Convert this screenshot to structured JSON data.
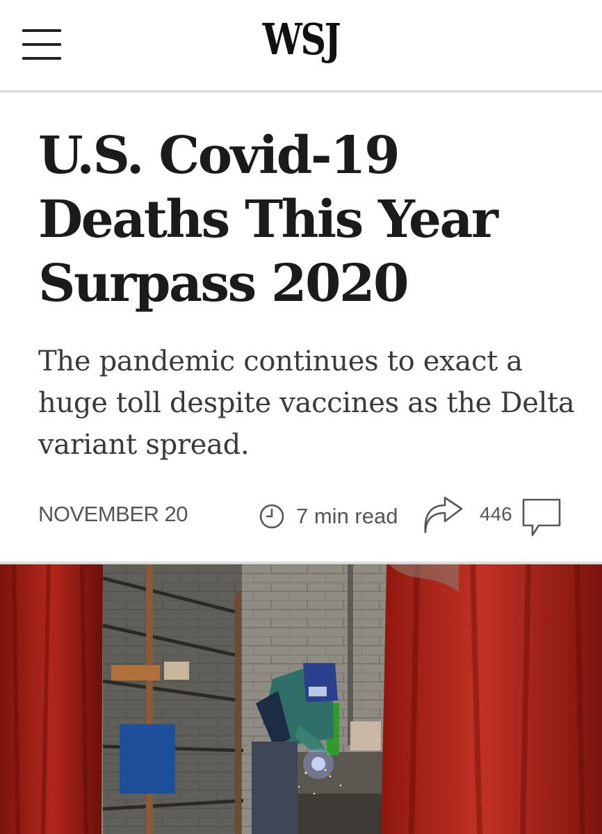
{
  "header": {
    "logo": "WSJ",
    "menu_icon": "hamburger-menu-icon"
  },
  "article": {
    "headline": "U.S. Covid-19 Deaths This Year Surpass 2020",
    "dek": "The pandemic continues to exact a huge toll despite vaccines as the Delta variant spread.",
    "date": "NOVEMBER 20",
    "read_time": "7 min read",
    "comment_count": "446"
  },
  "icons": {
    "clock": "clock-icon",
    "share": "share-arrow-icon",
    "comment": "comment-bubble-icon"
  },
  "colors": {
    "accent_red": "#b51d12",
    "text_dark": "#1b1b1b",
    "text_muted": "#555555"
  }
}
